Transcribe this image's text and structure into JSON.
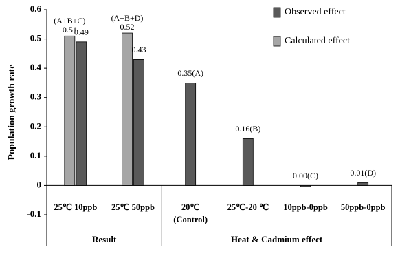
{
  "chart_data": {
    "type": "bar",
    "y_label": "Population growth rate",
    "categories": [
      "25℃ 10ppb",
      "25℃ 50ppb",
      "20℃\n(Control)",
      "25℃-20 ℃",
      "10ppb-0ppb",
      "50ppb-0ppb"
    ],
    "groups": [
      "Result",
      "Heat & Cadmium effect"
    ],
    "series": [
      {
        "name": "Observed effect",
        "color": "#595959",
        "values": [
          0.49,
          0.43,
          0.35,
          0.16,
          -0.004,
          0.01
        ],
        "value_labels": [
          "0.49",
          "0.43",
          "0.35(A)",
          "0.16(B)",
          "0.00(C)",
          "0.01(D)"
        ]
      },
      {
        "name": "Calculated effect",
        "color": "#a6a6a6",
        "values": [
          0.51,
          0.52,
          null,
          null,
          null,
          null
        ],
        "value_labels": [
          "0.51",
          "0.52",
          null,
          null,
          null,
          null
        ]
      }
    ],
    "annotations": [
      "(A+B+C)",
      "(A+B+D)"
    ],
    "ylim": [
      -0.1,
      0.6
    ],
    "yticks": [
      -0.1,
      0,
      0.1,
      0.2,
      0.3,
      0.4,
      0.5,
      0.6
    ],
    "grid": false,
    "legend": "top-right"
  }
}
